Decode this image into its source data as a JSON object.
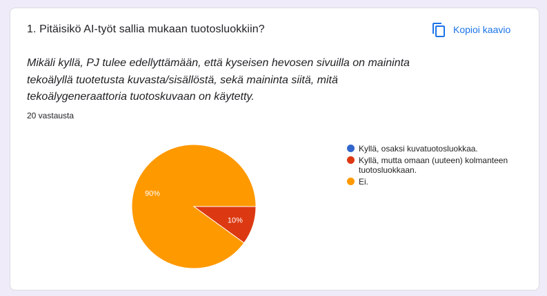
{
  "question": {
    "title": "1. Pitäisikö AI-työt sallia mukaan tuotosluokkiin?",
    "description": "Mikäli kyllä, PJ tulee edellyttämään, että kyseisen hevosen sivuilla on maininta tekoälyllä tuotetusta kuvasta/sisällöstä, sekä maininta siitä, mitä tekoälygeneraattoria tuotoskuvaan on käytetty.",
    "response_count": "20 vastausta"
  },
  "toolbar": {
    "copy_label": "Kopioi kaavio",
    "copy_icon": "copy-icon"
  },
  "colors": {
    "accent": "#1a73e8",
    "slice_blue": "#3366cc",
    "slice_red": "#dc3912",
    "slice_orange": "#ff9900"
  },
  "chart_data": {
    "type": "pie",
    "categories": [
      "Kyllä, osaksi kuvatuotosluokkaa.",
      "Kyllä, mutta omaan (uuteen) kolmanteen tuotosluokkaan.",
      "Ei."
    ],
    "values": [
      0,
      10,
      90
    ],
    "labels": [
      "",
      "10%",
      "90%"
    ],
    "colors": [
      "#3366cc",
      "#dc3912",
      "#ff9900"
    ],
    "legend_position": "right"
  }
}
